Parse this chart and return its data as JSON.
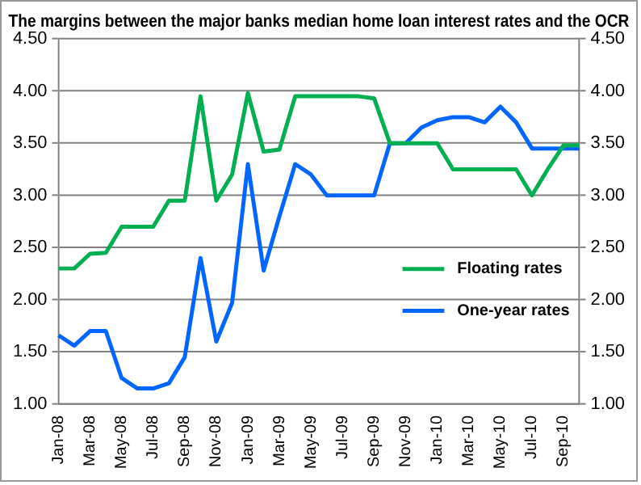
{
  "chart_data": {
    "type": "line",
    "title": "The margins between the major banks median home loan interest rates and the OCR",
    "categories": [
      "Jan-08",
      null,
      "Mar-08",
      null,
      "May-08",
      null,
      "Jul-08",
      null,
      "Sep-08",
      null,
      "Nov-08",
      null,
      "Jan-09",
      null,
      "Mar-09",
      null,
      "May-09",
      null,
      "Jul-09",
      null,
      "Sep-09",
      null,
      "Nov-09",
      null,
      "Jan-10",
      null,
      "Mar-10",
      null,
      "May-10",
      null,
      "Jul-10",
      null,
      "Sep-10",
      null
    ],
    "series": [
      {
        "name": "Floating rates",
        "color": "#00b050",
        "values": [
          2.3,
          2.3,
          2.44,
          2.45,
          2.7,
          2.7,
          2.7,
          2.95,
          2.95,
          3.95,
          2.95,
          3.2,
          3.98,
          3.42,
          3.44,
          3.95,
          3.95,
          3.95,
          3.95,
          3.95,
          3.93,
          3.5,
          3.5,
          3.5,
          3.5,
          3.25,
          3.25,
          3.25,
          3.25,
          3.25,
          3.0,
          3.25,
          3.48,
          3.48
        ]
      },
      {
        "name": "One-year rates",
        "color": "#0066ff",
        "values": [
          1.66,
          1.56,
          1.7,
          1.7,
          1.25,
          1.15,
          1.15,
          1.2,
          1.45,
          2.4,
          1.6,
          1.97,
          3.3,
          2.28,
          2.8,
          3.3,
          3.2,
          3.0,
          3.0,
          3.0,
          3.0,
          3.5,
          3.5,
          3.65,
          3.72,
          3.75,
          3.75,
          3.7,
          3.85,
          3.7,
          3.45,
          3.45,
          3.45,
          3.45
        ]
      }
    ],
    "ylim": [
      1,
      4.5
    ],
    "yticks": [
      {
        "value": 1,
        "label": "1.00"
      },
      {
        "value": 1.5,
        "label": "1.50"
      },
      {
        "value": 2,
        "label": "2.00"
      },
      {
        "value": 2.5,
        "label": "2.50"
      },
      {
        "value": 3,
        "label": "3.00"
      },
      {
        "value": 3.5,
        "label": "3.50"
      },
      {
        "value": 4,
        "label": "4.00"
      },
      {
        "value": 4.5,
        "label": "4.50"
      }
    ],
    "y2lim": [
      1,
      4.5
    ],
    "y2ticks": [
      {
        "value": 1,
        "label": "1.00"
      },
      {
        "value": 1.5,
        "label": "1.50"
      },
      {
        "value": 2,
        "label": "2.00"
      },
      {
        "value": 2.5,
        "label": "2.50"
      },
      {
        "value": 3,
        "label": "3.00"
      },
      {
        "value": 3.5,
        "label": "3.50"
      },
      {
        "value": 4,
        "label": "4.00"
      },
      {
        "value": 4.5,
        "label": "4.50"
      }
    ],
    "grid": "y",
    "legend": "right",
    "marker": "none",
    "line_style": "solid"
  }
}
